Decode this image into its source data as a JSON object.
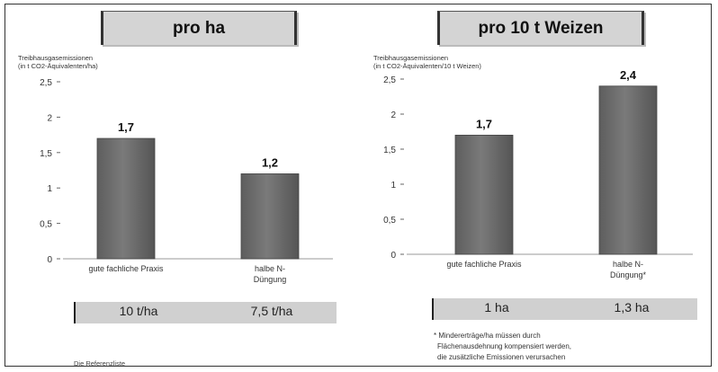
{
  "chart_data": [
    {
      "type": "bar",
      "title": "pro ha",
      "ylabel": "Treibhausgasemissionen\n(in t CO2-Äquivalenten/ha)",
      "ylim": [
        0,
        2.5
      ],
      "yticks": [
        "0",
        "0,5",
        "1",
        "1,5",
        "2",
        "2,5"
      ],
      "categories": [
        "gute fachliche Praxis",
        "halbe N-\nDüngung"
      ],
      "values": [
        1.7,
        1.2
      ],
      "value_labels": [
        "1,7",
        "1,2"
      ],
      "bar_color": "#7a7a7a",
      "info_labels": [
        "10 t/ha",
        "7,5 t/ha"
      ]
    },
    {
      "type": "bar",
      "title": "pro 10 t Weizen",
      "ylabel": "Treibhausgasemissionen\n(in t CO2-Äquivalenten/10 t Weizen)",
      "ylim": [
        0,
        2.5
      ],
      "yticks": [
        "0",
        "0,5",
        "1",
        "1,5",
        "2",
        "2,5"
      ],
      "categories": [
        "gute fachliche Praxis",
        "halbe N-\nDüngung*"
      ],
      "values": [
        1.7,
        2.4
      ],
      "value_labels": [
        "1,7",
        "2,4"
      ],
      "bar_color": "#7a7a7a",
      "info_labels": [
        "1 ha",
        "1,3 ha"
      ]
    }
  ],
  "footnote": {
    "lines": [
      "* Mindererträge/ha müssen durch",
      "Flächenausdehnung kompensiert werden,",
      "die zusätzliche Emissionen verursachen"
    ]
  },
  "source_label": "Die Referenzliste"
}
